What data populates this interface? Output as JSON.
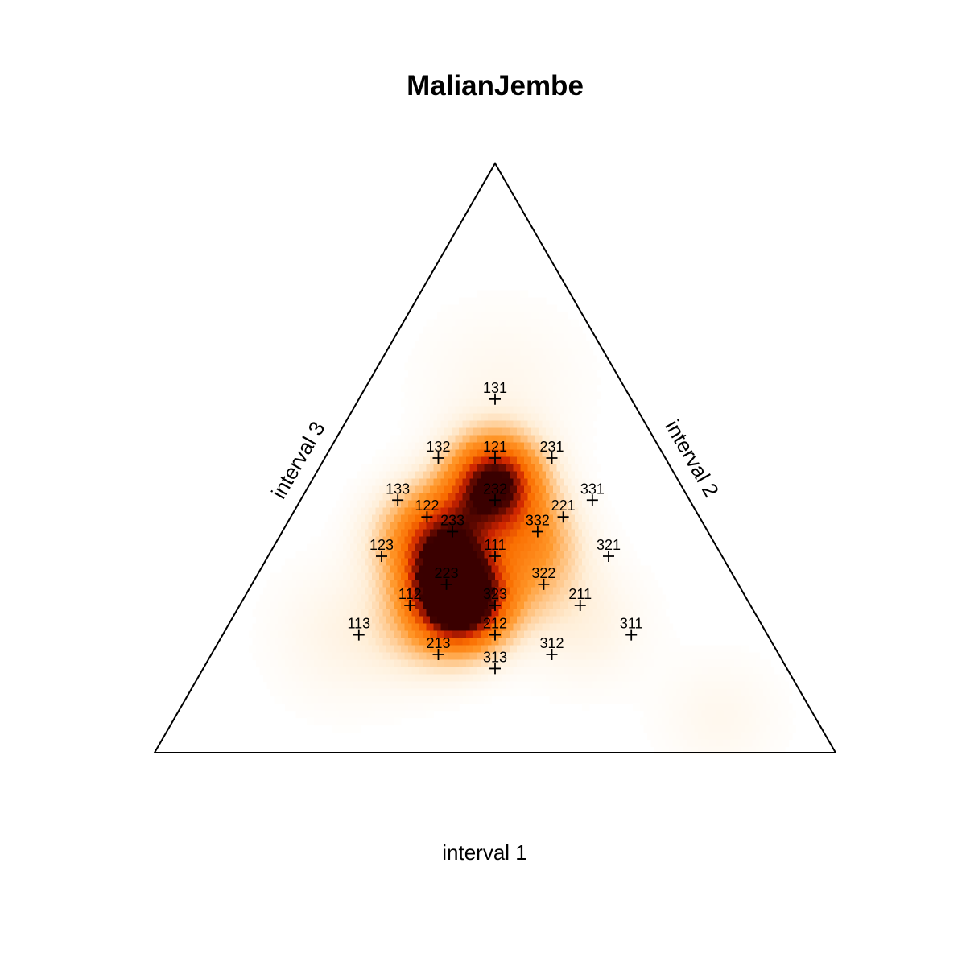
{
  "chart_data": {
    "type": "ternary-density",
    "title": "MalianJembe",
    "axes": {
      "bottom": "interval 1",
      "right": "interval 2",
      "left": "interval 3"
    },
    "points": [
      {
        "label": "131",
        "a": 1,
        "b": 3,
        "c": 1
      },
      {
        "label": "132",
        "a": 1,
        "b": 3,
        "c": 2
      },
      {
        "label": "121",
        "a": 1,
        "b": 2,
        "c": 1
      },
      {
        "label": "231",
        "a": 2,
        "b": 3,
        "c": 1
      },
      {
        "label": "133",
        "a": 1,
        "b": 3,
        "c": 3
      },
      {
        "label": "232",
        "a": 2,
        "b": 3,
        "c": 2
      },
      {
        "label": "331",
        "a": 3,
        "b": 3,
        "c": 1
      },
      {
        "label": "122",
        "a": 1,
        "b": 2,
        "c": 2
      },
      {
        "label": "221",
        "a": 2,
        "b": 2,
        "c": 1
      },
      {
        "label": "233",
        "a": 2,
        "b": 3,
        "c": 3
      },
      {
        "label": "332",
        "a": 3,
        "b": 3,
        "c": 2
      },
      {
        "label": "123",
        "a": 1,
        "b": 2,
        "c": 3
      },
      {
        "label": "111",
        "a": 1,
        "b": 1,
        "c": 1
      },
      {
        "label": "321",
        "a": 3,
        "b": 2,
        "c": 1
      },
      {
        "label": "223",
        "a": 2,
        "b": 2,
        "c": 3
      },
      {
        "label": "322",
        "a": 3,
        "b": 2,
        "c": 2
      },
      {
        "label": "112",
        "a": 1,
        "b": 1,
        "c": 2
      },
      {
        "label": "323",
        "a": 3,
        "b": 2,
        "c": 3
      },
      {
        "label": "211",
        "a": 2,
        "b": 1,
        "c": 1
      },
      {
        "label": "113",
        "a": 1,
        "b": 1,
        "c": 3
      },
      {
        "label": "212",
        "a": 2,
        "b": 1,
        "c": 2
      },
      {
        "label": "311",
        "a": 3,
        "b": 1,
        "c": 1
      },
      {
        "label": "213",
        "a": 2,
        "b": 1,
        "c": 3
      },
      {
        "label": "312",
        "a": 3,
        "b": 1,
        "c": 2
      },
      {
        "label": "313",
        "a": 3,
        "b": 1,
        "c": 3
      }
    ],
    "density_peaks": [
      {
        "near": "232",
        "a": 0.27,
        "b": 0.46,
        "c": 0.27,
        "intensity": 1.0,
        "spread": 0.045
      },
      {
        "near": "212",
        "a": 0.33,
        "b": 0.25,
        "c": 0.42,
        "intensity": 1.0,
        "spread": 0.045
      },
      {
        "near": "323",
        "a": 0.29,
        "b": 0.29,
        "c": 0.42,
        "intensity": 0.7,
        "spread": 0.04
      },
      {
        "near": "123",
        "a": 0.22,
        "b": 0.36,
        "c": 0.42,
        "intensity": 0.55,
        "spread": 0.05
      },
      {
        "near": "332",
        "a": 0.37,
        "b": 0.37,
        "c": 0.26,
        "intensity": 0.3,
        "spread": 0.045
      },
      {
        "near": "233",
        "a": 0.26,
        "b": 0.38,
        "c": 0.36,
        "intensity": 0.35,
        "spread": 0.045
      },
      {
        "near": "211",
        "a": 0.4,
        "b": 0.3,
        "c": 0.3,
        "intensity": 0.2,
        "spread": 0.05
      },
      {
        "near": "213",
        "a": 0.28,
        "b": 0.22,
        "c": 0.5,
        "intensity": 0.2,
        "spread": 0.05
      },
      {
        "near": "311",
        "a": 0.52,
        "b": 0.22,
        "c": 0.26,
        "intensity": 0.08,
        "spread": 0.06
      },
      {
        "near": "113",
        "a": 0.18,
        "b": 0.2,
        "c": 0.62,
        "intensity": 0.07,
        "spread": 0.07
      },
      {
        "near": "131",
        "a": 0.2,
        "b": 0.62,
        "c": 0.18,
        "intensity": 0.05,
        "spread": 0.08
      },
      {
        "near": "bottom-right corner",
        "a": 0.8,
        "b": 0.06,
        "c": 0.14,
        "intensity": 0.05,
        "spread": 0.06
      }
    ],
    "colors": {
      "low": "#ffffff",
      "mid": "#ff8000",
      "high": "#c01800",
      "max": "#3a0000",
      "edge": "#000000"
    }
  }
}
